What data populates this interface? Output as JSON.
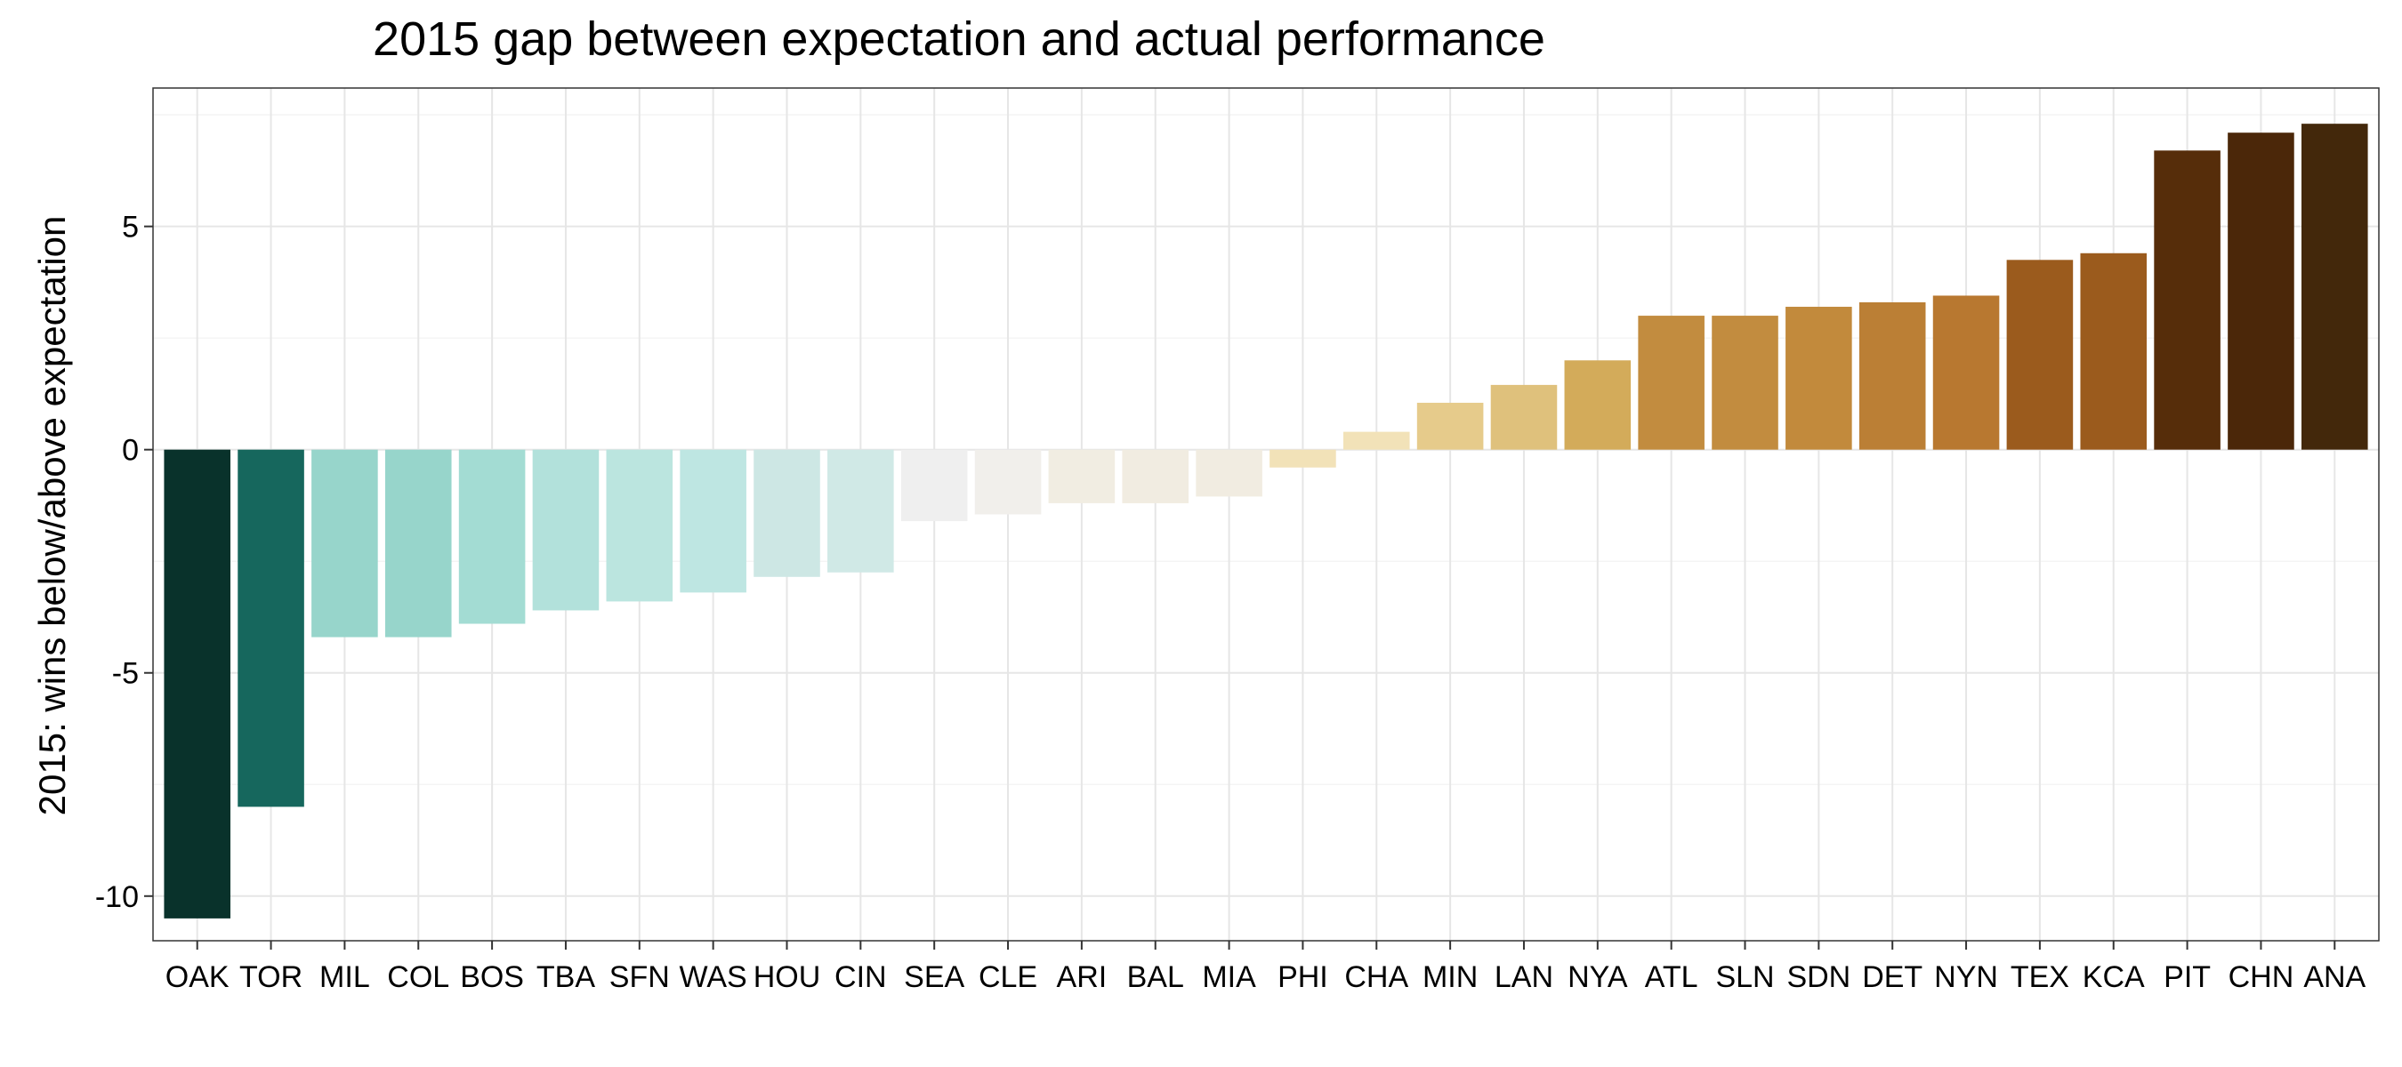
{
  "chart_data": {
    "type": "bar",
    "title": "2015 gap between expectation and actual performance",
    "xlabel": "",
    "ylabel": "2015: wins below/above expectation",
    "ylim": [
      -11.0,
      8.1
    ],
    "yticks": [
      -10,
      -5,
      0,
      5
    ],
    "ytick_labels": [
      "-10",
      "-5",
      "0",
      "5"
    ],
    "grid": true,
    "legend": "none",
    "categories": [
      "OAK",
      "TOR",
      "MIL",
      "COL",
      "BOS",
      "TBA",
      "SFN",
      "WAS",
      "HOU",
      "CIN",
      "SEA",
      "CLE",
      "ARI",
      "BAL",
      "MIA",
      "PHI",
      "CHA",
      "MIN",
      "LAN",
      "NYA",
      "ATL",
      "SLN",
      "SDN",
      "DET",
      "NYN",
      "TEX",
      "KCA",
      "PIT",
      "CHN",
      "ANA"
    ],
    "values": [
      -10.5,
      -8.0,
      -4.2,
      -4.2,
      -3.9,
      -3.6,
      -3.4,
      -3.2,
      -2.85,
      -2.75,
      -1.6,
      -1.45,
      -1.2,
      -1.2,
      -1.05,
      -0.4,
      0.4,
      1.05,
      1.45,
      2.0,
      3.0,
      3.0,
      3.2,
      3.3,
      3.45,
      4.25,
      4.4,
      6.7,
      7.1,
      7.3
    ],
    "colors": [
      "#09322b",
      "#16675d",
      "#97d5cb",
      "#97d5cb",
      "#a3dcd3",
      "#b2e1db",
      "#bbe5df",
      "#bee6e2",
      "#cde7e4",
      "#d0e9e6",
      "#efefef",
      "#f1efeb",
      "#f1ede2",
      "#f1ece1",
      "#f1ece1",
      "#f2e2b8",
      "#f2e2b8",
      "#e6cb8b",
      "#dfc17c",
      "#d3ab5a",
      "#c28c3f",
      "#c28c3f",
      "#c28a3c",
      "#bb7f35",
      "#b87830",
      "#9b5b1d",
      "#9b5b1d",
      "#562d0a",
      "#4b2709",
      "#43280b"
    ]
  }
}
